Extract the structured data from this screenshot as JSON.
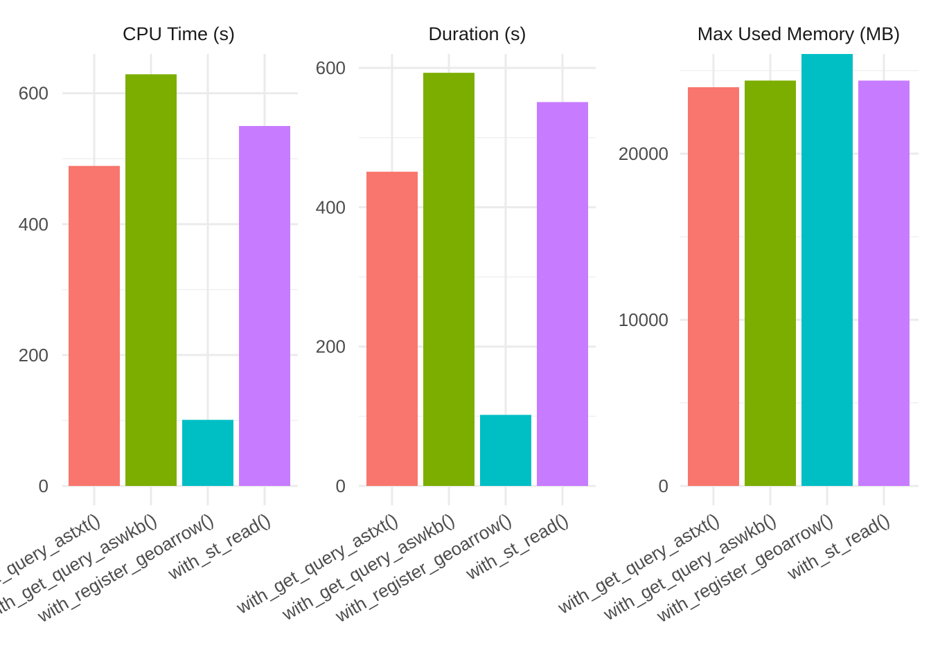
{
  "chart_data": [
    {
      "type": "bar",
      "title": "CPU Time (s)",
      "categories": [
        "with_get_query_astxt()",
        "with_get_query_aswkb()",
        "with_register_geoarrow()",
        "with_st_read()"
      ],
      "values": [
        489,
        629,
        101,
        550
      ],
      "ylim": [
        0,
        660
      ],
      "yticks": [
        0,
        200,
        400,
        600
      ],
      "grid": true,
      "legend": "none"
    },
    {
      "type": "bar",
      "title": "Duration (s)",
      "categories": [
        "with_get_query_astxt()",
        "with_get_query_aswkb()",
        "with_register_geoarrow()",
        "with_st_read()"
      ],
      "values": [
        451,
        593,
        102,
        551
      ],
      "ylim": [
        0,
        620
      ],
      "yticks": [
        0,
        200,
        400,
        600
      ],
      "grid": true,
      "legend": "none"
    },
    {
      "type": "bar",
      "title": "Max Used Memory (MB)",
      "categories": [
        "with_get_query_astxt()",
        "with_get_query_aswkb()",
        "with_register_geoarrow()",
        "with_st_read()"
      ],
      "values": [
        24000,
        24400,
        26000,
        24400
      ],
      "ylim": [
        0,
        26000
      ],
      "yticks": [
        0,
        10000,
        20000
      ],
      "grid": true,
      "legend": "none"
    }
  ],
  "colors": [
    "#F8766D",
    "#7CAE00",
    "#00BFC4",
    "#C77CFF"
  ]
}
